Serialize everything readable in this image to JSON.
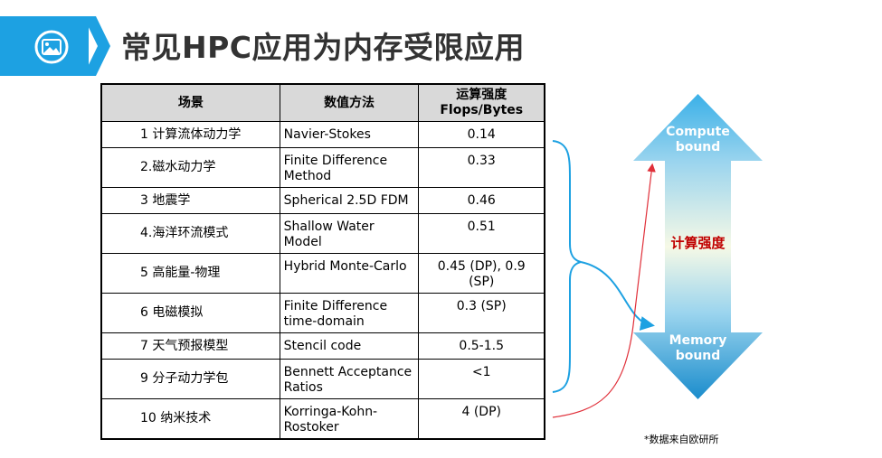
{
  "header": {
    "title": "常见HPC应用为内存受限应用",
    "icon": "image-icon",
    "accent_color": "#1da1e2"
  },
  "table": {
    "headers": {
      "scene": "场景",
      "method": "数值方法",
      "intensity_line1": "运算强度",
      "intensity_line2": "Flops/Bytes"
    },
    "rows": [
      {
        "scene": "1 计算流体动力学",
        "method": "Navier-Stokes",
        "intensity": "0.14"
      },
      {
        "scene": "2.磁水动力学",
        "method": "Finite Difference Method",
        "intensity": "0.33"
      },
      {
        "scene": "3 地震学",
        "method": "Spherical 2.5D FDM",
        "intensity": "0.46"
      },
      {
        "scene": "4.海洋环流模式",
        "method": "Shallow Water Model",
        "intensity": "0.51"
      },
      {
        "scene": "5 高能量-物理",
        "method": "Hybrid Monte-Carlo",
        "intensity": "0.45 (DP), 0.9 (SP)"
      },
      {
        "scene": "6 电磁模拟",
        "method": "Finite Difference time-domain",
        "intensity": "0.3 (SP)"
      },
      {
        "scene": "7 天气预报模型",
        "method": "Stencil code",
        "intensity": "0.5-1.5"
      },
      {
        "scene": "9 分子动力学包",
        "method": "Bennett Acceptance Ratios",
        "intensity": "<1"
      },
      {
        "scene": "10 纳米技术",
        "method": "Korringa-Kohn-Rostoker",
        "intensity": "4 (DP)"
      }
    ]
  },
  "arrow": {
    "top_line1": "Compute",
    "top_line2": "bound",
    "middle": "计算强度",
    "bottom_line1": "Memory",
    "bottom_line2": "bound",
    "color_top": "#3ab0e8",
    "color_mid": "#f6f9e6",
    "color_bottom": "#1a8ccc",
    "label_color": "#c00000"
  },
  "annotations": {
    "brace_color": "#1da1e2",
    "red_arrow_color": "#e0303a"
  },
  "source_note": "*数据来自欧研所"
}
